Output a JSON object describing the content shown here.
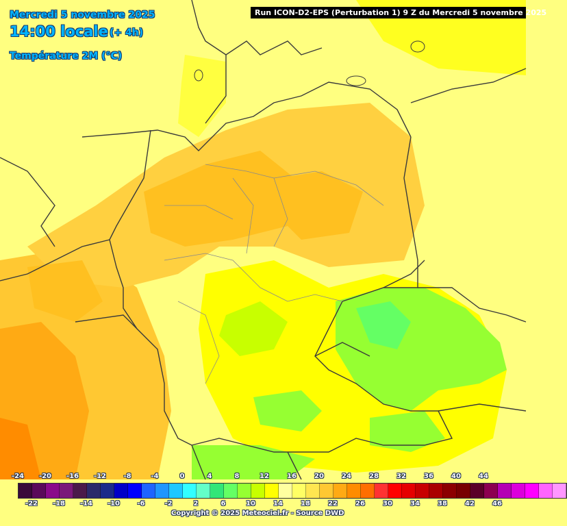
{
  "header": {
    "date": "Mercredi 5 novembre 2025",
    "time": "14:00 locale",
    "offset": "(+ 4h)",
    "variable": "Température 2M (°C)",
    "run": "Run ICON-D2-EPS (Perturbation 1) 9 Z du Mercredi 5 novembre 2025"
  },
  "legend": {
    "top_ticks": [
      "-24",
      "-20",
      "-16",
      "-12",
      "-8",
      "-4",
      "0",
      "4",
      "8",
      "12",
      "16",
      "20",
      "24",
      "28",
      "32",
      "36",
      "40",
      "44"
    ],
    "bottom_ticks": [
      "-22",
      "-18",
      "-14",
      "-10",
      "-6",
      "-2",
      "2",
      "6",
      "10",
      "14",
      "18",
      "22",
      "26",
      "30",
      "34",
      "38",
      "42",
      "46"
    ],
    "colors": [
      "#3a0a3a",
      "#5a0a5a",
      "#8a0a8a",
      "#7a1a7a",
      "#4a1a4a",
      "#2a2a6a",
      "#1a2a8a",
      "#0000c8",
      "#0000ff",
      "#1e64ff",
      "#1e96ff",
      "#1ec8ff",
      "#32ffff",
      "#64ffc8",
      "#32e678",
      "#64ff64",
      "#96ff32",
      "#c8ff00",
      "#ffff00",
      "#ffffa0",
      "#ffff64",
      "#ffe650",
      "#ffc832",
      "#ffaa14",
      "#ff8c00",
      "#ff6e00",
      "#ff3232",
      "#ff0000",
      "#e60000",
      "#c80000",
      "#aa0000",
      "#8c0000",
      "#780000",
      "#5a0028",
      "#8c0050",
      "#b400b4",
      "#dc00dc",
      "#ff00ff",
      "#ff64ff",
      "#ff96ff"
    ]
  },
  "footer": {
    "copyright": "Copyright © 2025 Meteociel.fr - Source DWD"
  }
}
